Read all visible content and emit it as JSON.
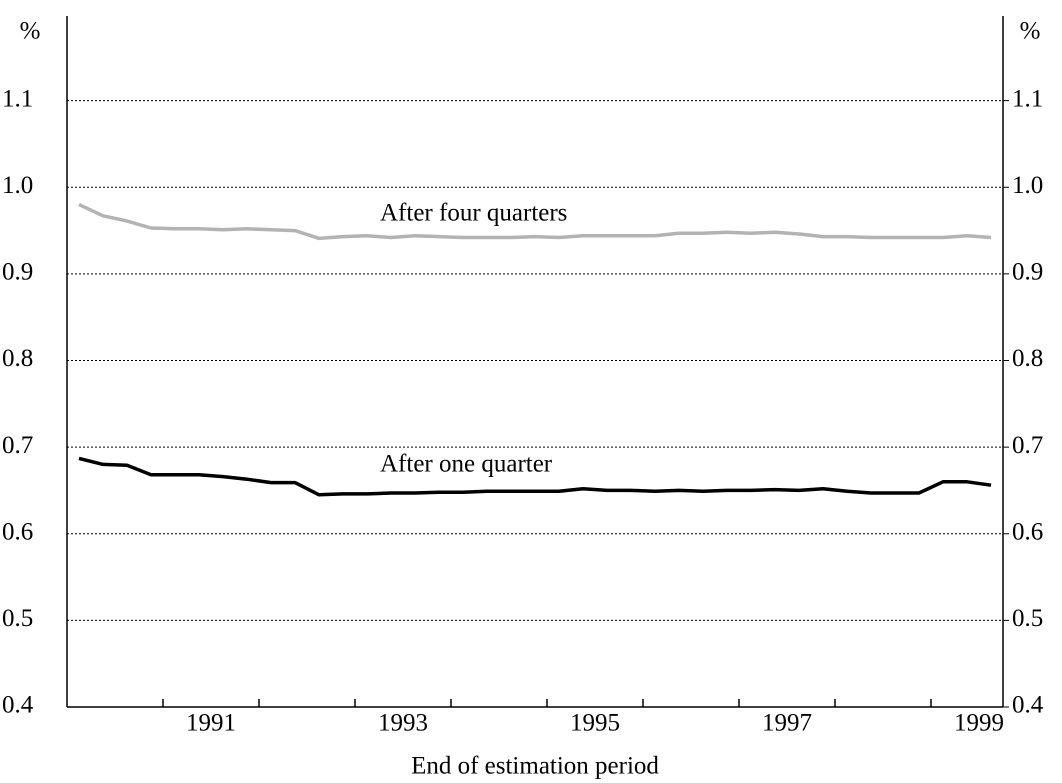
{
  "chart_data": {
    "type": "line",
    "y_label": "%",
    "y2_label": "%",
    "x_label": "End of estimation period",
    "categories": [
      null,
      null,
      null,
      null,
      null,
      null,
      "1991",
      null,
      null,
      null,
      null,
      null,
      null,
      null,
      "1993",
      null,
      null,
      null,
      null,
      null,
      null,
      null,
      "1995",
      null,
      null,
      null,
      null,
      null,
      null,
      null,
      "1997",
      null,
      null,
      null,
      null,
      null,
      null,
      null,
      "1999"
    ],
    "series": [
      {
        "name": "After four quarters",
        "color": "#b3b3b3",
        "values": [
          0.98,
          0.967,
          0.961,
          0.953,
          0.952,
          0.952,
          0.951,
          0.952,
          0.951,
          0.95,
          0.941,
          0.943,
          0.944,
          0.942,
          0.944,
          0.943,
          0.942,
          0.942,
          0.942,
          0.943,
          0.942,
          0.944,
          0.944,
          0.944,
          0.944,
          0.947,
          0.947,
          0.948,
          0.947,
          0.948,
          0.946,
          0.943,
          0.943,
          0.942,
          0.942,
          0.942,
          0.942,
          0.944,
          0.942
        ]
      },
      {
        "name": "After one quarter",
        "color": "#000000",
        "values": [
          0.687,
          0.68,
          0.679,
          0.668,
          0.668,
          0.668,
          0.666,
          0.663,
          0.659,
          0.659,
          0.645,
          0.646,
          0.646,
          0.647,
          0.647,
          0.648,
          0.648,
          0.649,
          0.649,
          0.649,
          0.649,
          0.652,
          0.65,
          0.65,
          0.649,
          0.65,
          0.649,
          0.65,
          0.65,
          0.651,
          0.65,
          0.652,
          0.649,
          0.647,
          0.647,
          0.647,
          0.66,
          0.66,
          0.656
        ]
      }
    ],
    "ylim": [
      0.4,
      1.2
    ],
    "yticks": [
      0.4,
      0.5,
      0.6,
      0.7,
      0.8,
      0.9,
      {
        "value": 1,
        "label": "1.0"
      },
      1.1
    ],
    "y2lim": [
      0.4,
      1.2
    ],
    "y2ticks": [
      0.4,
      0.5,
      0.6,
      0.7,
      0.8,
      0.9,
      {
        "value": 1,
        "label": "1.0"
      },
      1.1
    ],
    "grid": true
  }
}
